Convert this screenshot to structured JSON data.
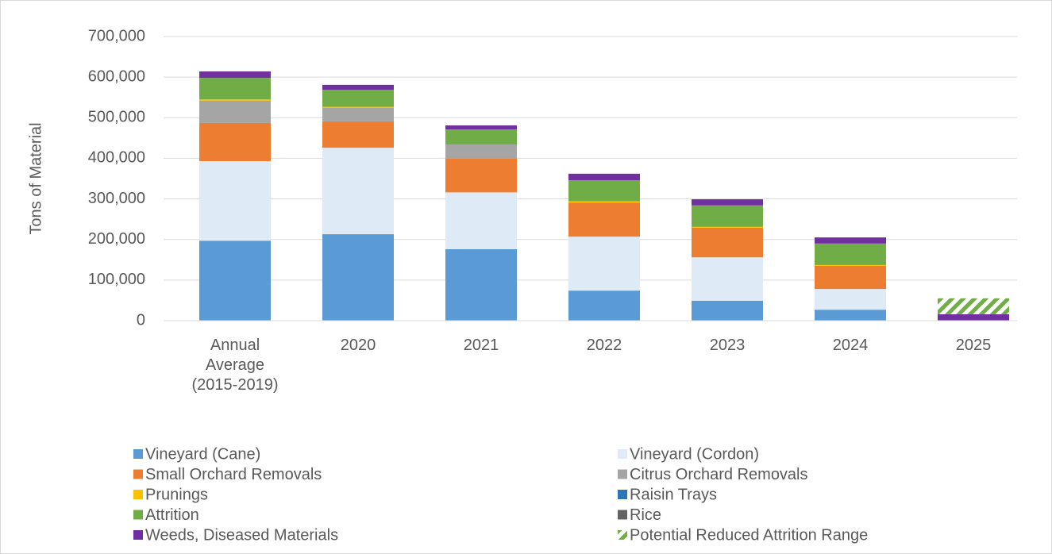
{
  "chart_data": {
    "type": "stacked_bar",
    "y_axis_label": "Tons of Material",
    "categories": [
      "Annual Average (2015-2019)",
      "2020",
      "2021",
      "2022",
      "2023",
      "2024",
      "2025"
    ],
    "series": [
      {
        "name": "Vineyard (Cane)",
        "color": "#5b9bd5",
        "values": [
          197000,
          213000,
          176000,
          74000,
          49000,
          27000,
          0
        ]
      },
      {
        "name": "Vineyard (Cordon)",
        "color": "#deebf7",
        "values": [
          196000,
          213000,
          140000,
          133000,
          107000,
          51000,
          0
        ]
      },
      {
        "name": "Small Orchard Removals",
        "color": "#ed7d31",
        "values": [
          94000,
          65000,
          83000,
          84000,
          73000,
          57000,
          0
        ]
      },
      {
        "name": "Citrus Orchard Removals",
        "color": "#a5a5a5",
        "values": [
          55000,
          33000,
          35000,
          0,
          0,
          0,
          0
        ]
      },
      {
        "name": "Prunings",
        "color": "#ffc000",
        "values": [
          3000,
          3000,
          0,
          3000,
          2000,
          2000,
          0
        ]
      },
      {
        "name": "Raisin Trays",
        "color": "#2e75b6",
        "values": [
          0,
          0,
          0,
          0,
          0,
          0,
          0
        ]
      },
      {
        "name": "Attrition",
        "color": "#70ad47",
        "values": [
          53000,
          42000,
          37000,
          52000,
          53000,
          53000,
          0
        ]
      },
      {
        "name": "Rice",
        "color": "#636363",
        "values": [
          0,
          0,
          0,
          0,
          0,
          0,
          0
        ]
      },
      {
        "name": "Weeds, Diseased Materials",
        "color": "#7030a0",
        "values": [
          16000,
          12000,
          10000,
          16000,
          15000,
          15000,
          16000
        ]
      },
      {
        "name": "Potential Reduced Attrition Range",
        "color": "#70ad47",
        "fill_style": "hatched",
        "values": [
          0,
          0,
          0,
          0,
          0,
          0,
          39000
        ]
      }
    ],
    "ylim": [
      0,
      700000
    ],
    "yticks": [
      0,
      {
        "value": 100000,
        "label": "100,000"
      },
      {
        "value": 200000,
        "label": "200,000"
      },
      {
        "value": 300000,
        "label": "300,000"
      },
      {
        "value": 400000,
        "label": "400,000"
      },
      {
        "value": 500000,
        "label": "500,000"
      },
      {
        "value": 600000,
        "label": "600,000"
      },
      {
        "value": 700000,
        "label": "700,000"
      }
    ],
    "grid": true,
    "legend": "bottom"
  }
}
